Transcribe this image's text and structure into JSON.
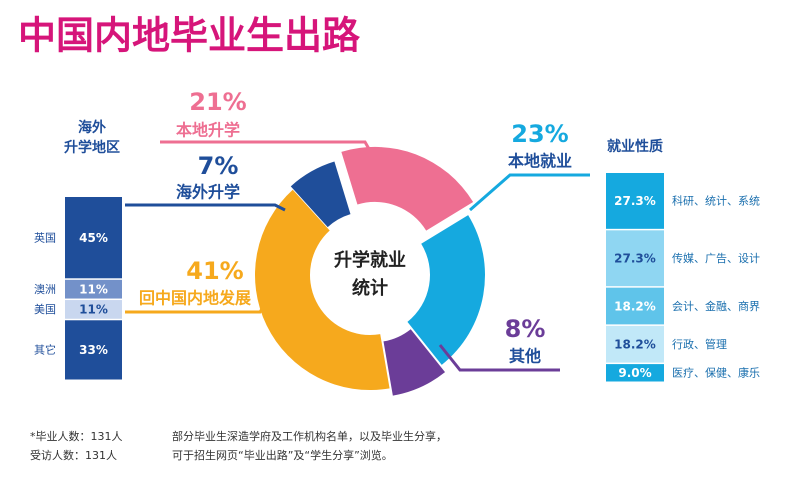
{
  "title": "中国内地毕业生出路",
  "chart_data": [
    {
      "type": "donut",
      "center_label": [
        "升学就业",
        "统计"
      ],
      "categories": [
        "本地升学",
        "本地就业",
        "其他",
        "回中国内地发展",
        "海外升学"
      ],
      "values": [
        21,
        23,
        8,
        41,
        7
      ],
      "value_labels": [
        "21%",
        "23%",
        "8%",
        "41%",
        "7%"
      ],
      "colors": [
        "#ee6f92",
        "#15a9df",
        "#6b3d98",
        "#f6a91d",
        "#1f4e9a"
      ]
    },
    {
      "type": "stacked-bar",
      "title": [
        "海外",
        "升学地区"
      ],
      "categories": [
        "英国",
        "澳洲",
        "美国",
        "其它"
      ],
      "values": [
        45,
        11,
        11,
        33
      ],
      "value_labels": [
        "45%",
        "11%",
        "11%",
        "33%"
      ],
      "colors": [
        "#1f4e9a",
        "#7391c9",
        "#c9d7ef",
        "#1f4e9a"
      ]
    },
    {
      "type": "stacked-bar",
      "title": [
        "就业性质"
      ],
      "categories": [
        "科研、统计、系统",
        "传媒、广告、设计",
        "会计、金融、商界",
        "行政、管理",
        "医疗、保健、康乐"
      ],
      "values": [
        27.3,
        27.3,
        18.2,
        18.2,
        9.0
      ],
      "value_labels": [
        "27.3%",
        "27.3%",
        "18.2%",
        "18.2%",
        "9.0%"
      ],
      "colors": [
        "#15a9df",
        "#8fd6f2",
        "#5fc4ea",
        "#c1e8f8",
        "#15a9df"
      ]
    }
  ],
  "notes": [
    "*毕业人数：131人",
    "受访人数：131人",
    "部分毕业生深造学府及工作机构名单，以及毕业生分享，",
    "可于招生网页“毕业出路”及“学生分享”浏览。"
  ]
}
